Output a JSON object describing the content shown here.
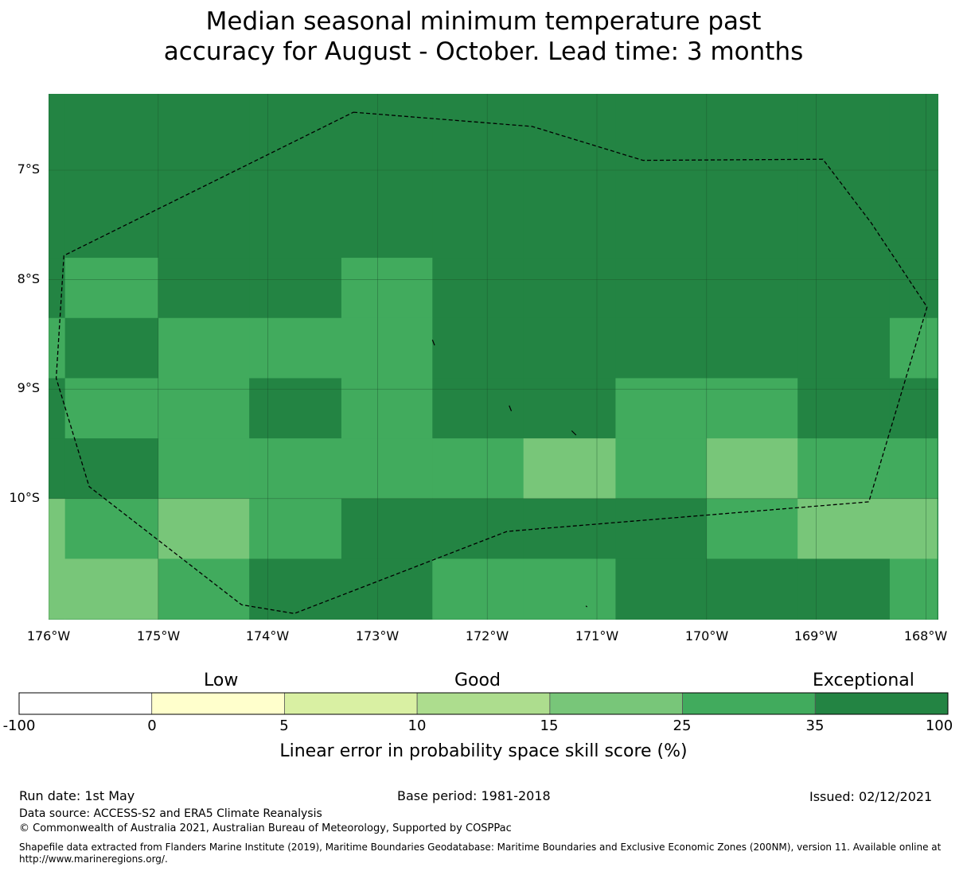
{
  "title_line1": "Median seasonal minimum temperature past",
  "title_line2": "accuracy for August - October. Lead time: 3 months",
  "lat_labels": [
    "7°S",
    "8°S",
    "9°S",
    "10°S"
  ],
  "lon_labels": [
    "176°W",
    "175°W",
    "174°W",
    "173°W",
    "172°W",
    "171°W",
    "170°W",
    "169°W",
    "168°W"
  ],
  "colorbar": {
    "categories": [
      "Low",
      "Good",
      "Exceptional"
    ],
    "boundaries": [
      "-100",
      "0",
      "5",
      "10",
      "15",
      "25",
      "35",
      "100"
    ],
    "colors": [
      "#ffffff",
      "#ffffcc",
      "#d9f0a3",
      "#addd8e",
      "#78c679",
      "#41ab5d",
      "#238443"
    ],
    "label": "Linear error in probability space skill score (%)"
  },
  "skill_grid": {
    "lon_edges": [
      -176.0,
      -175.85,
      -175.0,
      -174.17,
      -173.33,
      -172.5,
      -171.67,
      -170.83,
      -170.0,
      -169.17,
      -168.33,
      -167.9
    ],
    "lat_edges": [
      -6.3,
      -7.8,
      -8.35,
      -8.9,
      -9.45,
      -10.0,
      -10.55,
      -11.1
    ],
    "rows": [
      [
        35,
        35,
        35,
        35,
        35,
        35,
        35,
        35,
        35,
        35,
        35
      ],
      [
        35,
        25,
        35,
        35,
        25,
        35,
        35,
        35,
        35,
        35,
        35
      ],
      [
        25,
        35,
        25,
        25,
        25,
        35,
        35,
        35,
        35,
        35,
        25
      ],
      [
        35,
        25,
        25,
        35,
        25,
        35,
        35,
        25,
        25,
        35,
        35
      ],
      [
        35,
        35,
        25,
        25,
        25,
        25,
        15,
        25,
        15,
        25,
        25
      ],
      [
        15,
        25,
        15,
        25,
        35,
        35,
        35,
        35,
        25,
        15,
        15
      ],
      [
        15,
        15,
        25,
        35,
        35,
        25,
        25,
        35,
        35,
        35,
        25
      ]
    ]
  },
  "eez_boundary": [
    [
      -173.22,
      -6.47
    ],
    [
      -171.59,
      -6.6
    ],
    [
      -170.58,
      -6.91
    ],
    [
      -168.94,
      -6.9
    ],
    [
      -168.5,
      -7.48
    ],
    [
      -167.99,
      -8.25
    ],
    [
      -168.52,
      -10.03
    ],
    [
      -171.82,
      -10.3
    ],
    [
      -173.76,
      -11.05
    ],
    [
      -174.24,
      -10.97
    ],
    [
      -175.63,
      -9.89
    ],
    [
      -175.93,
      -8.9
    ],
    [
      -175.86,
      -7.78
    ],
    [
      -173.22,
      -6.47
    ]
  ],
  "footer": {
    "run_date": "Run date: 1st May",
    "base_period": "Base period: 1981-2018",
    "issued": "Issued: 02/12/2021",
    "data_source": "Data source: ACCESS-S2 and ERA5 Climate Reanalysis",
    "copyright": "© Commonwealth of Australia 2021, Australian Bureau of Meteorology, Supported by COSPPac",
    "shapefile_line1": "Shapefile data extracted from Flanders Marine Institute (2019), Maritime Boundaries Geodatabase: Maritime Boundaries and Exclusive Economic Zones (200NM), version 11. Available online at",
    "shapefile_line2": "http://www.marineregions.org/."
  }
}
